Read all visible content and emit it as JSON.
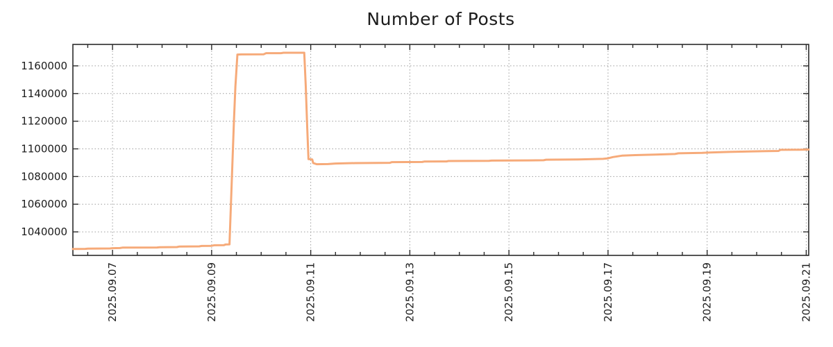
{
  "chart_data": {
    "type": "line",
    "title": "Number of Posts",
    "legend": "none",
    "background": "#ffffff",
    "frame_color": "#2b2b2b",
    "text_color": "#1c1c1c",
    "grid": {
      "style": "dotted",
      "color": "#9c9c9c"
    },
    "x_axis": {
      "label": "",
      "tick_labels": [
        "2025.09.07",
        "2025.09.09",
        "2025.09.11",
        "2025.09.13",
        "2025.09.15",
        "2025.09.17",
        "2025.09.19",
        "2025.09.21"
      ],
      "tick_positions_days": [
        1,
        3,
        5,
        7,
        9,
        11,
        13,
        15
      ],
      "minor_tick_step_days": 0.5,
      "range_days": [
        0.2,
        15.05
      ],
      "days_measured_from": "2025.09.06",
      "labels_rotated_degrees": 90
    },
    "y_axis": {
      "label": "",
      "tick_labels": [
        "1040000",
        "1060000",
        "1080000",
        "1100000",
        "1120000",
        "1140000",
        "1160000"
      ],
      "tick_values": [
        1040000,
        1060000,
        1080000,
        1100000,
        1120000,
        1140000,
        1160000
      ],
      "range": [
        1023000,
        1175500
      ]
    },
    "series": [
      {
        "name": "number-of-posts",
        "color": "#F6AA79",
        "line_width": 3,
        "points_days_value": [
          [
            0.2,
            1027600
          ],
          [
            0.45,
            1027700
          ],
          [
            0.5,
            1027900
          ],
          [
            0.95,
            1028000
          ],
          [
            1.0,
            1028200
          ],
          [
            1.15,
            1028300
          ],
          [
            1.2,
            1028600
          ],
          [
            1.9,
            1028700
          ],
          [
            1.95,
            1028900
          ],
          [
            2.3,
            1029000
          ],
          [
            2.35,
            1029400
          ],
          [
            2.75,
            1029500
          ],
          [
            2.8,
            1029800
          ],
          [
            3.0,
            1029900
          ],
          [
            3.05,
            1030300
          ],
          [
            3.25,
            1030400
          ],
          [
            3.28,
            1030900
          ],
          [
            3.36,
            1031000
          ],
          [
            3.4,
            1070000
          ],
          [
            3.45,
            1120000
          ],
          [
            3.48,
            1145000
          ],
          [
            3.52,
            1168200
          ],
          [
            3.6,
            1168300
          ],
          [
            4.05,
            1168400
          ],
          [
            4.1,
            1169200
          ],
          [
            4.4,
            1169200
          ],
          [
            4.45,
            1169500
          ],
          [
            4.87,
            1169500
          ],
          [
            4.9,
            1145000
          ],
          [
            4.93,
            1115000
          ],
          [
            4.955,
            1092600
          ],
          [
            5.03,
            1092400
          ],
          [
            5.05,
            1089700
          ],
          [
            5.12,
            1088900
          ],
          [
            5.35,
            1089000
          ],
          [
            5.5,
            1089400
          ],
          [
            5.9,
            1089700
          ],
          [
            6.6,
            1089900
          ],
          [
            6.64,
            1090400
          ],
          [
            7.25,
            1090500
          ],
          [
            7.29,
            1090800
          ],
          [
            7.74,
            1090900
          ],
          [
            7.78,
            1091200
          ],
          [
            8.6,
            1091300
          ],
          [
            8.65,
            1091500
          ],
          [
            9.4,
            1091700
          ],
          [
            9.7,
            1091800
          ],
          [
            9.75,
            1092200
          ],
          [
            10.4,
            1092400
          ],
          [
            10.9,
            1092800
          ],
          [
            11.0,
            1093200
          ],
          [
            11.1,
            1094100
          ],
          [
            11.28,
            1095100
          ],
          [
            11.55,
            1095500
          ],
          [
            11.95,
            1095900
          ],
          [
            12.35,
            1096300
          ],
          [
            12.42,
            1096800
          ],
          [
            12.9,
            1097100
          ],
          [
            13.05,
            1097400
          ],
          [
            13.45,
            1097800
          ],
          [
            13.85,
            1098100
          ],
          [
            14.2,
            1098400
          ],
          [
            14.44,
            1098500
          ],
          [
            14.48,
            1099300
          ],
          [
            14.85,
            1099400
          ],
          [
            15.05,
            1099500
          ]
        ]
      }
    ]
  }
}
